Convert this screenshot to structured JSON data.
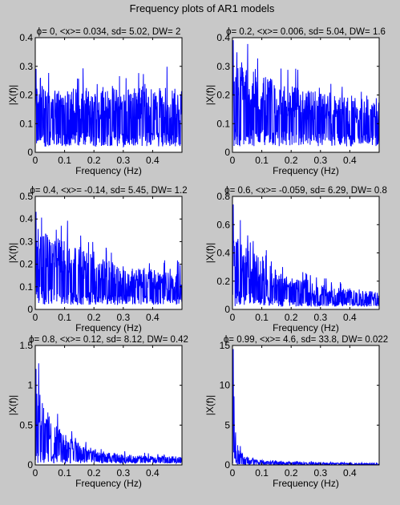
{
  "figure": {
    "title": "Frequency plots of AR1 models",
    "background": "#c8c8c8",
    "axes_background": "#ffffff",
    "line_color": "#0000ff"
  },
  "chart_data": [
    {
      "type": "line",
      "title": "ϕ= 0, <x>= 0.034, sd= 5.02, DW= 2",
      "xlabel": "Frequency (Hz)",
      "ylabel": "|X(f)|",
      "xlim": [
        0,
        0.5
      ],
      "ylim": [
        0,
        0.4
      ],
      "xticks": [
        0,
        0.1,
        0.2,
        0.3,
        0.4
      ],
      "xtick_labels": [
        "0",
        "0.1",
        "0.2",
        "0.3",
        "0.4"
      ],
      "yticks": [
        0,
        0.1,
        0.2,
        0.3,
        0.4
      ],
      "ytick_labels": [
        "0",
        "0.1",
        "0.2",
        "0.3",
        "0.4"
      ],
      "x": [
        0.0,
        0.05,
        0.1,
        0.15,
        0.2,
        0.25,
        0.3,
        0.35,
        0.4,
        0.45,
        0.5
      ],
      "y_envelope": [
        0.22,
        0.21,
        0.2,
        0.21,
        0.2,
        0.21,
        0.2,
        0.21,
        0.2,
        0.21,
        0.2
      ],
      "y_peak": 0.29,
      "y_floor": 0.02
    },
    {
      "type": "line",
      "title": "ϕ= 0.2, <x>= 0.006, sd= 5.04, DW= 1.6",
      "xlabel": "Frequency (Hz)",
      "ylabel": "|X(f)|",
      "xlim": [
        0,
        0.5
      ],
      "ylim": [
        0,
        0.4
      ],
      "xticks": [
        0,
        0.1,
        0.2,
        0.3,
        0.4
      ],
      "xtick_labels": [
        "0",
        "0.1",
        "0.2",
        "0.3",
        "0.4"
      ],
      "yticks": [
        0,
        0.1,
        0.2,
        0.3,
        0.4
      ],
      "ytick_labels": [
        "0",
        "0.1",
        "0.2",
        "0.3",
        "0.4"
      ],
      "x": [
        0.0,
        0.05,
        0.1,
        0.15,
        0.2,
        0.25,
        0.3,
        0.35,
        0.4,
        0.45,
        0.5
      ],
      "y_envelope": [
        0.29,
        0.27,
        0.24,
        0.22,
        0.21,
        0.2,
        0.19,
        0.18,
        0.18,
        0.18,
        0.18
      ],
      "y_peak": 0.39,
      "y_floor": 0.02
    },
    {
      "type": "line",
      "title": "ϕ= 0.4, <x>= -0.14, sd= 5.45, DW= 1.2",
      "xlabel": "Frequency (Hz)",
      "ylabel": "|X(f)|",
      "xlim": [
        0,
        0.5
      ],
      "ylim": [
        0,
        0.5
      ],
      "xticks": [
        0,
        0.1,
        0.2,
        0.3,
        0.4
      ],
      "xtick_labels": [
        "0",
        "0.1",
        "0.2",
        "0.3",
        "0.4"
      ],
      "yticks": [
        0,
        0.1,
        0.2,
        0.3,
        0.4,
        0.5
      ],
      "ytick_labels": [
        "0",
        "0.1",
        "0.2",
        "0.3",
        "0.4",
        "0.5"
      ],
      "x": [
        0.0,
        0.05,
        0.1,
        0.15,
        0.2,
        0.25,
        0.3,
        0.35,
        0.4,
        0.45,
        0.5
      ],
      "y_envelope": [
        0.33,
        0.3,
        0.28,
        0.25,
        0.22,
        0.2,
        0.18,
        0.17,
        0.16,
        0.15,
        0.15
      ],
      "y_peak": 0.43,
      "y_floor": 0.02
    },
    {
      "type": "line",
      "title": "ϕ= 0.6, <x>= -0.059, sd= 6.29, DW= 0.8",
      "xlabel": "Frequency (Hz)",
      "ylabel": "|X(f)|",
      "xlim": [
        0,
        0.5
      ],
      "ylim": [
        0,
        0.8
      ],
      "xticks": [
        0,
        0.1,
        0.2,
        0.3,
        0.4
      ],
      "xtick_labels": [
        "0",
        "0.1",
        "0.2",
        "0.3",
        "0.4"
      ],
      "yticks": [
        0,
        0.2,
        0.4,
        0.6,
        0.8
      ],
      "ytick_labels": [
        "0",
        "0.2",
        "0.4",
        "0.6",
        "0.8"
      ],
      "x": [
        0.0,
        0.05,
        0.1,
        0.15,
        0.2,
        0.25,
        0.3,
        0.35,
        0.4,
        0.45,
        0.5
      ],
      "y_envelope": [
        0.5,
        0.4,
        0.32,
        0.26,
        0.21,
        0.18,
        0.16,
        0.14,
        0.13,
        0.12,
        0.12
      ],
      "y_peak": 0.74,
      "y_floor": 0.02
    },
    {
      "type": "line",
      "title": "ϕ= 0.8, <x>= 0.12, sd= 8.12, DW= 0.42",
      "xlabel": "Frequency (Hz)",
      "ylabel": "|X(f)|",
      "xlim": [
        0,
        0.5
      ],
      "ylim": [
        0,
        1.5
      ],
      "xticks": [
        0,
        0.1,
        0.2,
        0.3,
        0.4
      ],
      "xtick_labels": [
        "0",
        "0.1",
        "0.2",
        "0.3",
        "0.4"
      ],
      "yticks": [
        0,
        0.5,
        1,
        1.5
      ],
      "ytick_labels": [
        "0",
        "0.5",
        "1",
        "1.5"
      ],
      "x": [
        0.0,
        0.02,
        0.05,
        0.1,
        0.15,
        0.2,
        0.25,
        0.3,
        0.35,
        0.4,
        0.45,
        0.5
      ],
      "y_envelope": [
        1.1,
        0.8,
        0.55,
        0.35,
        0.25,
        0.18,
        0.14,
        0.12,
        0.11,
        0.1,
        0.1,
        0.1
      ],
      "y_peak": 1.2,
      "y_floor": 0.02
    },
    {
      "type": "line",
      "title": "ϕ= 0.99, <x>= 4.6, sd= 33.8, DW= 0.022",
      "xlabel": "Frequency (Hz)",
      "ylabel": "|X(f)|",
      "xlim": [
        0,
        0.5
      ],
      "ylim": [
        0,
        15
      ],
      "xticks": [
        0,
        0.1,
        0.2,
        0.3,
        0.4
      ],
      "xtick_labels": [
        "0",
        "0.1",
        "0.2",
        "0.3",
        "0.4"
      ],
      "yticks": [
        0,
        5,
        10,
        15
      ],
      "ytick_labels": [
        "0",
        "5",
        "10",
        "15"
      ],
      "x": [
        0.0,
        0.003,
        0.006,
        0.01,
        0.02,
        0.04,
        0.08,
        0.15,
        0.25,
        0.35,
        0.5
      ],
      "y_envelope": [
        14.5,
        10.5,
        6,
        3.5,
        2,
        1,
        0.6,
        0.4,
        0.3,
        0.25,
        0.2
      ],
      "y_peak": 14.5,
      "y_floor": 0.02
    }
  ]
}
